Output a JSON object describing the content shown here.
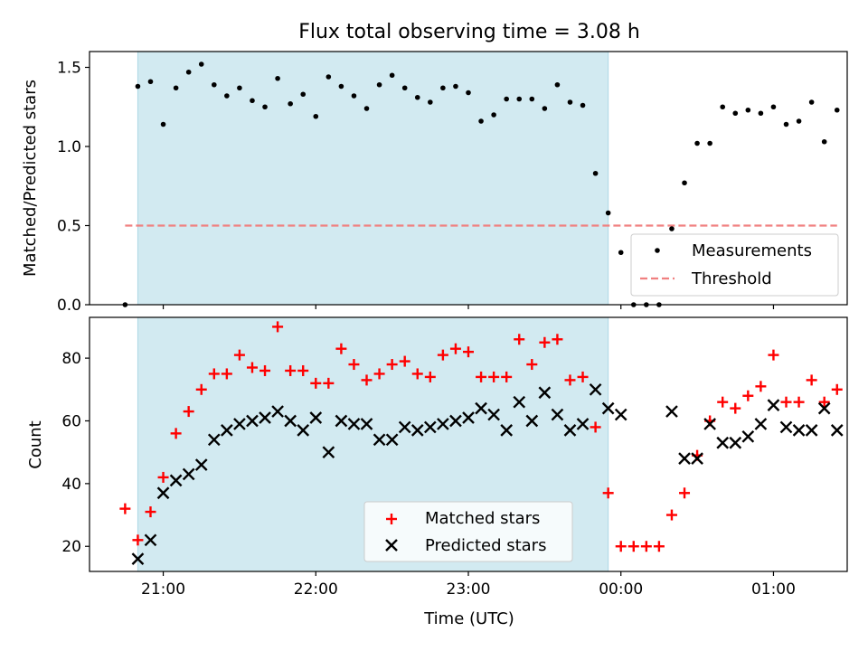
{
  "title": "Flux total observing time = 3.08 h",
  "xlabel": "Time (UTC)",
  "x_ticks": [
    "21:00",
    "22:00",
    "23:00",
    "00:00",
    "01:00"
  ],
  "chart_data": [
    {
      "type": "scatter",
      "ylabel": "Matched/Predicted stars",
      "ylim": [
        0,
        1.6
      ],
      "y_ticks": [
        "0.0",
        "0.5",
        "1.0",
        "1.5"
      ],
      "shaded_span": [
        "20:50",
        "23:55"
      ],
      "threshold": {
        "name": "Threshold",
        "value": 0.5,
        "x_range": [
          "20:45",
          "01:25"
        ],
        "color": "#f08080"
      },
      "legend": {
        "position": "lower-right",
        "entries": [
          "Measurements",
          "Threshold"
        ]
      },
      "series": [
        {
          "name": "Measurements",
          "color": "#000000",
          "points": [
            [
              "20:45",
              0.0
            ],
            [
              "20:50",
              1.38
            ],
            [
              "20:55",
              1.41
            ],
            [
              "21:00",
              1.14
            ],
            [
              "21:05",
              1.37
            ],
            [
              "21:10",
              1.47
            ],
            [
              "21:15",
              1.52
            ],
            [
              "21:20",
              1.39
            ],
            [
              "21:25",
              1.32
            ],
            [
              "21:30",
              1.37
            ],
            [
              "21:35",
              1.29
            ],
            [
              "21:40",
              1.25
            ],
            [
              "21:45",
              1.43
            ],
            [
              "21:50",
              1.27
            ],
            [
              "21:55",
              1.33
            ],
            [
              "22:00",
              1.19
            ],
            [
              "22:05",
              1.44
            ],
            [
              "22:10",
              1.38
            ],
            [
              "22:15",
              1.32
            ],
            [
              "22:20",
              1.24
            ],
            [
              "22:25",
              1.39
            ],
            [
              "22:30",
              1.45
            ],
            [
              "22:35",
              1.37
            ],
            [
              "22:40",
              1.31
            ],
            [
              "22:45",
              1.28
            ],
            [
              "22:50",
              1.37
            ],
            [
              "22:55",
              1.38
            ],
            [
              "23:00",
              1.34
            ],
            [
              "23:05",
              1.16
            ],
            [
              "23:10",
              1.2
            ],
            [
              "23:15",
              1.3
            ],
            [
              "23:20",
              1.3
            ],
            [
              "23:25",
              1.3
            ],
            [
              "23:30",
              1.24
            ],
            [
              "23:35",
              1.39
            ],
            [
              "23:40",
              1.28
            ],
            [
              "23:45",
              1.26
            ],
            [
              "23:50",
              0.83
            ],
            [
              "23:55",
              0.58
            ],
            [
              "00:00",
              0.33
            ],
            [
              "00:05",
              0.0
            ],
            [
              "00:10",
              0.0
            ],
            [
              "00:15",
              0.0
            ],
            [
              "00:20",
              0.48
            ],
            [
              "00:25",
              0.77
            ],
            [
              "00:30",
              1.02
            ],
            [
              "00:35",
              1.02
            ],
            [
              "00:40",
              1.25
            ],
            [
              "00:45",
              1.21
            ],
            [
              "00:50",
              1.23
            ],
            [
              "00:55",
              1.21
            ],
            [
              "01:00",
              1.25
            ],
            [
              "01:05",
              1.14
            ],
            [
              "01:10",
              1.16
            ],
            [
              "01:15",
              1.28
            ],
            [
              "01:20",
              1.03
            ],
            [
              "01:25",
              1.23
            ]
          ]
        }
      ]
    },
    {
      "type": "scatter",
      "ylabel": "Count",
      "ylim": [
        12,
        93
      ],
      "y_ticks": [
        "20",
        "40",
        "60",
        "80"
      ],
      "shaded_span": [
        "20:50",
        "23:55"
      ],
      "legend": {
        "position": "lower-center",
        "entries": [
          "Matched stars",
          "Predicted stars"
        ]
      },
      "series": [
        {
          "name": "Matched stars",
          "color": "#ff0000",
          "marker": "plus",
          "points": [
            [
              "20:45",
              32
            ],
            [
              "20:50",
              22
            ],
            [
              "20:55",
              31
            ],
            [
              "21:00",
              42
            ],
            [
              "21:05",
              56
            ],
            [
              "21:10",
              63
            ],
            [
              "21:15",
              70
            ],
            [
              "21:20",
              75
            ],
            [
              "21:25",
              75
            ],
            [
              "21:30",
              81
            ],
            [
              "21:35",
              77
            ],
            [
              "21:40",
              76
            ],
            [
              "21:45",
              90
            ],
            [
              "21:50",
              76
            ],
            [
              "21:55",
              76
            ],
            [
              "22:00",
              72
            ],
            [
              "22:05",
              72
            ],
            [
              "22:10",
              83
            ],
            [
              "22:15",
              78
            ],
            [
              "22:20",
              73
            ],
            [
              "22:25",
              75
            ],
            [
              "22:30",
              78
            ],
            [
              "22:35",
              79
            ],
            [
              "22:40",
              75
            ],
            [
              "22:45",
              74
            ],
            [
              "22:50",
              81
            ],
            [
              "22:55",
              83
            ],
            [
              "23:00",
              82
            ],
            [
              "23:05",
              74
            ],
            [
              "23:10",
              74
            ],
            [
              "23:15",
              74
            ],
            [
              "23:20",
              86
            ],
            [
              "23:25",
              78
            ],
            [
              "23:30",
              85
            ],
            [
              "23:35",
              86
            ],
            [
              "23:40",
              73
            ],
            [
              "23:45",
              74
            ],
            [
              "23:50",
              58
            ],
            [
              "23:55",
              37
            ],
            [
              "00:00",
              20
            ],
            [
              "00:05",
              20
            ],
            [
              "00:10",
              20
            ],
            [
              "00:15",
              20
            ],
            [
              "00:20",
              30
            ],
            [
              "00:25",
              37
            ],
            [
              "00:30",
              49
            ],
            [
              "00:35",
              60
            ],
            [
              "00:40",
              66
            ],
            [
              "00:45",
              64
            ],
            [
              "00:50",
              68
            ],
            [
              "00:55",
              71
            ],
            [
              "01:00",
              81
            ],
            [
              "01:05",
              66
            ],
            [
              "01:10",
              66
            ],
            [
              "01:15",
              73
            ],
            [
              "01:20",
              66
            ],
            [
              "01:25",
              70
            ]
          ]
        },
        {
          "name": "Predicted stars",
          "color": "#000000",
          "marker": "x",
          "points": [
            [
              "20:50",
              16
            ],
            [
              "20:55",
              22
            ],
            [
              "21:00",
              37
            ],
            [
              "21:05",
              41
            ],
            [
              "21:10",
              43
            ],
            [
              "21:15",
              46
            ],
            [
              "21:20",
              54
            ],
            [
              "21:25",
              57
            ],
            [
              "21:30",
              59
            ],
            [
              "21:35",
              60
            ],
            [
              "21:40",
              61
            ],
            [
              "21:45",
              63
            ],
            [
              "21:50",
              60
            ],
            [
              "21:55",
              57
            ],
            [
              "22:00",
              61
            ],
            [
              "22:05",
              50
            ],
            [
              "22:10",
              60
            ],
            [
              "22:15",
              59
            ],
            [
              "22:20",
              59
            ],
            [
              "22:25",
              54
            ],
            [
              "22:30",
              54
            ],
            [
              "22:35",
              58
            ],
            [
              "22:40",
              57
            ],
            [
              "22:45",
              58
            ],
            [
              "22:50",
              59
            ],
            [
              "22:55",
              60
            ],
            [
              "23:00",
              61
            ],
            [
              "23:05",
              64
            ],
            [
              "23:10",
              62
            ],
            [
              "23:15",
              57
            ],
            [
              "23:20",
              66
            ],
            [
              "23:25",
              60
            ],
            [
              "23:30",
              69
            ],
            [
              "23:35",
              62
            ],
            [
              "23:40",
              57
            ],
            [
              "23:45",
              59
            ],
            [
              "23:50",
              70
            ],
            [
              "23:55",
              64
            ],
            [
              "00:00",
              62
            ],
            [
              "00:20",
              63
            ],
            [
              "00:25",
              48
            ],
            [
              "00:30",
              48
            ],
            [
              "00:35",
              59
            ],
            [
              "00:40",
              53
            ],
            [
              "00:45",
              53
            ],
            [
              "00:50",
              55
            ],
            [
              "00:55",
              59
            ],
            [
              "01:00",
              65
            ],
            [
              "01:05",
              58
            ],
            [
              "01:10",
              57
            ],
            [
              "01:15",
              57
            ],
            [
              "01:20",
              64
            ],
            [
              "01:25",
              57
            ]
          ]
        }
      ]
    }
  ],
  "colors": {
    "shade": "#add8e6",
    "matched": "#ff0000",
    "predicted": "#000000",
    "threshold": "#f08080"
  }
}
